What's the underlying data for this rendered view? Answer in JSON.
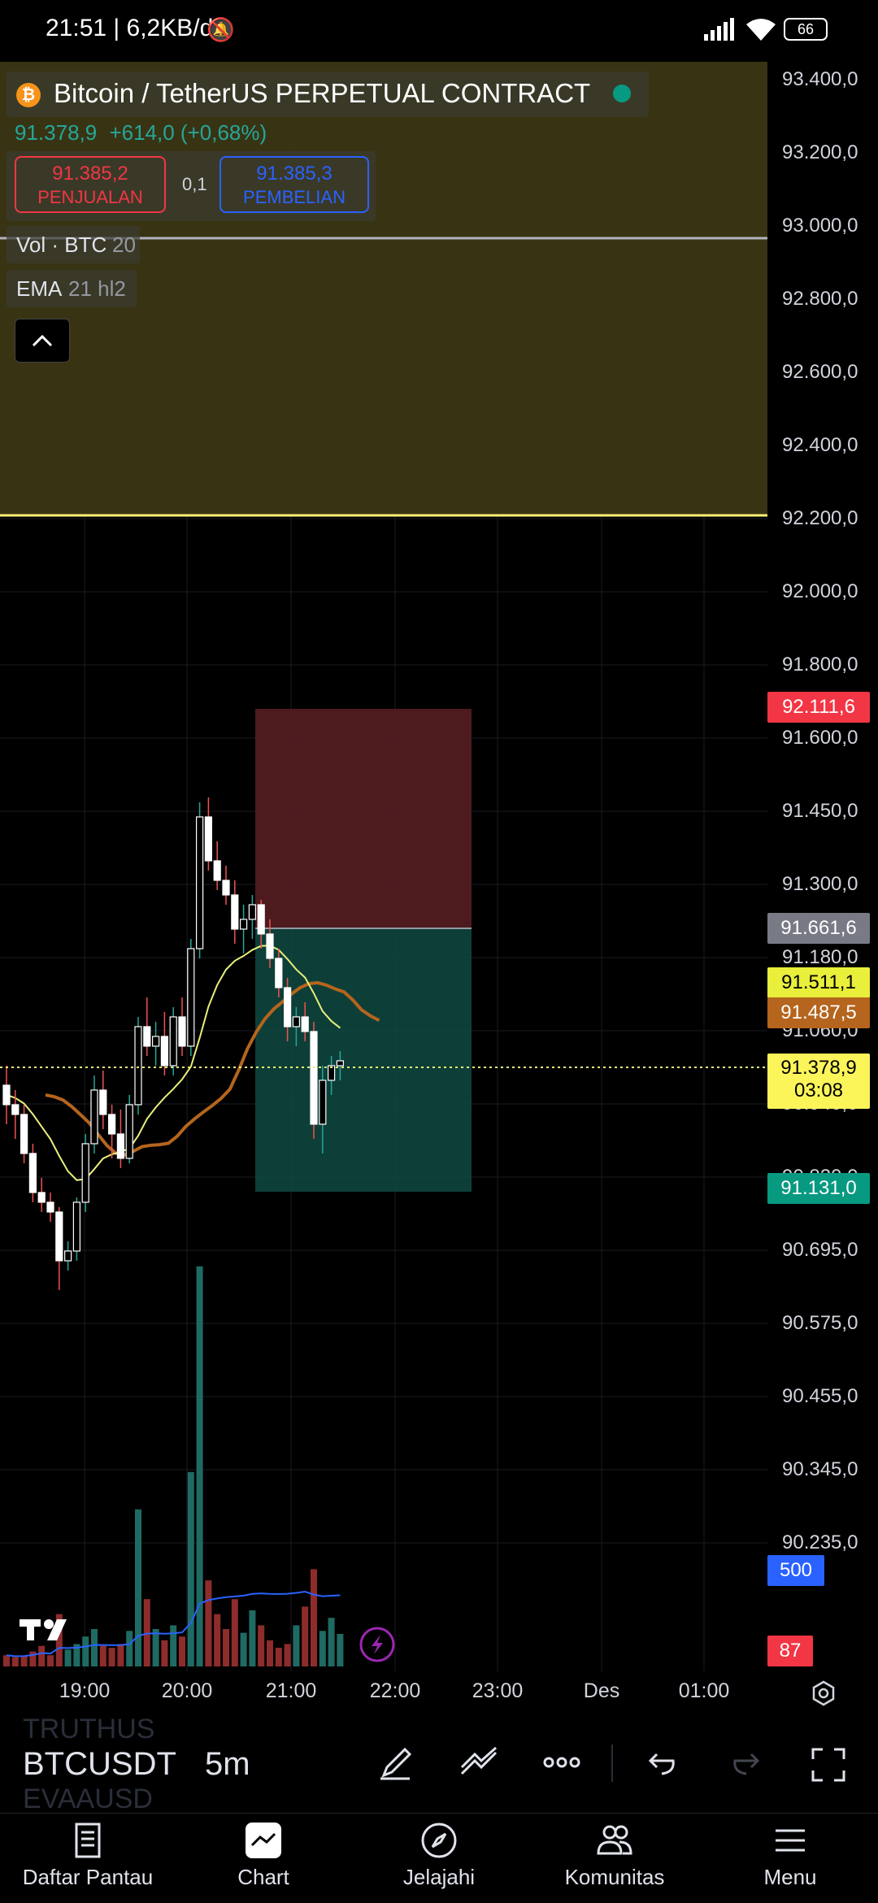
{
  "status_bar": {
    "time_speed": "21:51 | 6,2KB/d",
    "battery": "66"
  },
  "header": {
    "symbol_title": "Bitcoin / TetherUS PERPETUAL CONTRACT",
    "price": "91.378,9",
    "change": "+614,0 (+0,68%)",
    "sell_price": "91.385,2",
    "sell_label": "PENJUALAN",
    "spread": "0,1",
    "buy_price": "91.385,3",
    "buy_label": "PEMBELIAN",
    "vol_label": "Vol · BTC",
    "vol_param": "20",
    "ema_label": "EMA",
    "ema_param": "21 hl2"
  },
  "price_axis": {
    "ticks": [
      "93.400,0",
      "93.200,0",
      "93.000,0",
      "92.800,0",
      "92.600,0",
      "92.400,0",
      "92.200,0",
      "92.000,0",
      "91.800,0",
      "91.600,0",
      "91.450,0",
      "91.300,0",
      "91.180,0",
      "91.060,0",
      "90.940,0",
      "90.820,0",
      "90.695,0",
      "90.575,0",
      "90.455,0",
      "90.345,0",
      "90.235,0"
    ],
    "labels": {
      "stop": "92.111,6",
      "entry": "91.661,6",
      "ema_yellow": "91.511,1",
      "ema_orange": "91.487,5",
      "last_price": "91.378,9",
      "countdown": "03:08",
      "target": "91.131,0",
      "vol_ma": "500",
      "vol_last": "87"
    }
  },
  "time_axis": {
    "ticks": [
      "19:00",
      "20:00",
      "21:00",
      "22:00",
      "23:00",
      "Des",
      "01:00"
    ]
  },
  "colors": {
    "up": "#26a69a",
    "down": "#ef5350",
    "ema_yellow": "#e9ef7a",
    "ema_orange": "#b5651d",
    "vol_ma": "#2962ff",
    "alert_line": "#fff176"
  },
  "chart_data": {
    "type": "candlestick",
    "candles_ohlc": [
      [
        91340,
        91380,
        91260,
        91300
      ],
      [
        91300,
        91330,
        91230,
        91280
      ],
      [
        91280,
        91300,
        91180,
        91200
      ],
      [
        91200,
        91220,
        91100,
        91120
      ],
      [
        91120,
        91150,
        91080,
        91100
      ],
      [
        91100,
        91120,
        91060,
        91080
      ],
      [
        91080,
        91090,
        90920,
        90980
      ],
      [
        90980,
        91020,
        90960,
        91000
      ],
      [
        91000,
        91110,
        90980,
        91100
      ],
      [
        91100,
        91240,
        91080,
        91220
      ],
      [
        91220,
        91360,
        91200,
        91330
      ],
      [
        91330,
        91370,
        91250,
        91280
      ],
      [
        91280,
        91300,
        91190,
        91240
      ],
      [
        91240,
        91290,
        91170,
        91190
      ],
      [
        91190,
        91320,
        91180,
        91300
      ],
      [
        91300,
        91480,
        91280,
        91460
      ],
      [
        91460,
        91520,
        91400,
        91420
      ],
      [
        91420,
        91470,
        91380,
        91440
      ],
      [
        91440,
        91490,
        91360,
        91380
      ],
      [
        91380,
        91500,
        91360,
        91480
      ],
      [
        91480,
        91520,
        91400,
        91420
      ],
      [
        91420,
        91640,
        91400,
        91620
      ],
      [
        91620,
        91920,
        91600,
        91890
      ],
      [
        91890,
        91930,
        91780,
        91800
      ],
      [
        91800,
        91840,
        91740,
        91760
      ],
      [
        91760,
        91790,
        91710,
        91730
      ],
      [
        91730,
        91760,
        91630,
        91660
      ],
      [
        91660,
        91710,
        91610,
        91680
      ],
      [
        91680,
        91730,
        91640,
        91710
      ],
      [
        91710,
        91720,
        91620,
        91650
      ],
      [
        91650,
        91680,
        91580,
        91600
      ],
      [
        91600,
        91620,
        91520,
        91540
      ],
      [
        91540,
        91560,
        91430,
        91460
      ],
      [
        91460,
        91500,
        91420,
        91480
      ],
      [
        91480,
        91510,
        91430,
        91450
      ],
      [
        91450,
        91470,
        91230,
        91260
      ],
      [
        91260,
        91380,
        91200,
        91350
      ],
      [
        91350,
        91400,
        91320,
        91380
      ],
      [
        91380,
        91410,
        91350,
        91390
      ]
    ],
    "volumes": [
      30,
      25,
      28,
      40,
      55,
      30,
      140,
      45,
      60,
      80,
      100,
      55,
      50,
      60,
      95,
      420,
      180,
      100,
      70,
      110,
      80,
      520,
      1070,
      230,
      140,
      100,
      180,
      90,
      150,
      110,
      70,
      50,
      60,
      110,
      160,
      260,
      95,
      130,
      87
    ],
    "ema_line": "EMA 21 hl2",
    "position": {
      "entry": 91661.6,
      "stop": 92111.6,
      "target": 91131.0
    }
  },
  "toolbar": {
    "symbol": "BTCUSDT",
    "symbol_above": "TRUTHUS",
    "symbol_below": "EVAAUSD",
    "interval": "5m"
  },
  "bottom_nav": {
    "items": [
      "Daftar Pantau",
      "Chart",
      "Jelajahi",
      "Komunitas",
      "Menu"
    ]
  }
}
